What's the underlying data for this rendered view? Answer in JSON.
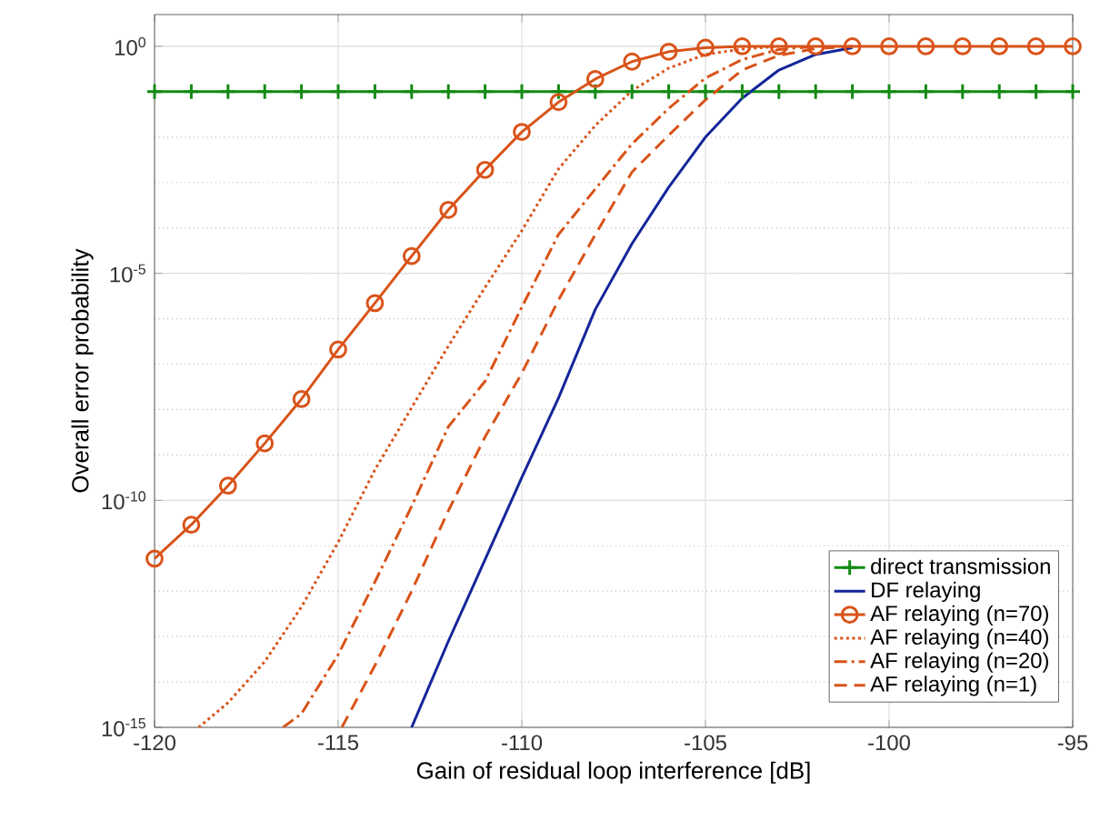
{
  "chart_data": {
    "type": "line",
    "xlabel": "Gain of residual loop interference [dB]",
    "ylabel": "Overall error probability",
    "xlim": [
      -120,
      -95
    ],
    "xticks": [
      -120,
      -115,
      -110,
      -105,
      -100,
      -95
    ],
    "ylim": [
      1e-15,
      5
    ],
    "yticks": [
      {
        "value": 1e-15,
        "label": "10$^{-15}$"
      },
      {
        "value": 1e-10,
        "label": "10$^{-10}$"
      },
      {
        "value": 1e-05,
        "label": "10$^{-5}$"
      },
      {
        "value": 1,
        "label": "10$^{0}$"
      }
    ],
    "log": "y",
    "grid": true,
    "legend": "bottom right",
    "series": [
      {
        "name": "direct transmission",
        "color": "#138a13",
        "marker": "cross",
        "line_style": "solid",
        "x": [
          -120,
          -119,
          -118,
          -117,
          -116,
          -115,
          -114,
          -113,
          -112,
          -111,
          -110,
          -109,
          -108,
          -107,
          -106,
          -105,
          -104,
          -103,
          -102,
          -101,
          -100,
          -99,
          -98,
          -97,
          -96,
          -95
        ],
        "values": [
          0.1,
          0.1,
          0.1,
          0.1,
          0.1,
          0.1,
          0.1,
          0.1,
          0.1,
          0.1,
          0.1,
          0.1,
          0.1,
          0.1,
          0.1,
          0.1,
          0.1,
          0.1,
          0.1,
          0.1,
          0.1,
          0.1,
          0.1,
          0.1,
          0.1,
          0.1
        ]
      },
      {
        "name": "DF relaying",
        "color": "#14269a",
        "marker": "none",
        "line_style": "solid",
        "x": [
          -113,
          -112,
          -111,
          -110,
          -109,
          -108,
          -107,
          -106,
          -105,
          -104,
          -103,
          -102,
          -101
        ],
        "values": [
          1e-15,
          7.9e-14,
          5e-12,
          3.2e-10,
          1.8e-08,
          1.6e-06,
          4.5e-05,
          0.00079,
          0.01,
          0.072,
          0.3,
          0.66,
          0.93
        ]
      },
      {
        "name": "AF relaying (n=70)",
        "color": "#d95319",
        "marker": "circle",
        "line_style": "solid",
        "x": [
          -120,
          -119,
          -118,
          -117,
          -116,
          -115,
          -114,
          -113,
          -112,
          -111,
          -110,
          -109,
          -108,
          -107,
          -106,
          -105,
          -104,
          -103,
          -102,
          -101,
          -100,
          -99,
          -98,
          -97,
          -96,
          -95
        ],
        "values": [
          5.2e-12,
          2.9e-11,
          2.1e-10,
          1.8e-09,
          1.7e-08,
          2.1e-07,
          2.2e-06,
          2.4e-05,
          0.00025,
          0.0019,
          0.013,
          0.059,
          0.19,
          0.46,
          0.76,
          0.93,
          1,
          1,
          1,
          1,
          1,
          1,
          1,
          1,
          1,
          1
        ]
      },
      {
        "name": "AF relaying (n=40)",
        "color": "#d95319",
        "marker": "none",
        "line_style": "dotted",
        "x": [
          -118.8,
          -118,
          -117,
          -116,
          -115,
          -114,
          -113,
          -112,
          -111,
          -110,
          -109,
          -108,
          -107,
          -106,
          -105,
          -104,
          -103
        ],
        "values": [
          1e-15,
          3.5e-15,
          2.8e-14,
          4.5e-13,
          1.2e-11,
          4.7e-10,
          1.1e-08,
          2.5e-07,
          4.9e-06,
          8.7e-05,
          0.002,
          0.018,
          0.105,
          0.33,
          0.66,
          0.87,
          1
        ]
      },
      {
        "name": "AF relaying (n=20)",
        "color": "#d95319",
        "marker": "none",
        "line_style": "dashdot",
        "x": [
          -116.5,
          -116,
          -115,
          -114,
          -113,
          -112,
          -111,
          -110,
          -109,
          -108,
          -107,
          -106,
          -105,
          -104,
          -103,
          -102
        ],
        "values": [
          1e-15,
          2e-15,
          4e-14,
          1.6e-12,
          7.4e-11,
          4.2e-09,
          4.2e-08,
          1.8e-06,
          7.2e-05,
          0.00072,
          0.0071,
          0.043,
          0.2,
          0.51,
          0.85,
          1
        ]
      },
      {
        "name": "AF relaying (n=1)",
        "color": "#d95319",
        "marker": "none",
        "line_style": "dashed",
        "x": [
          -114.9,
          -114,
          -113,
          -112,
          -111,
          -110,
          -109,
          -108,
          -107,
          -106,
          -105,
          -104,
          -103,
          -102,
          -101
        ],
        "values": [
          1e-15,
          2.3e-14,
          1e-12,
          5.9e-11,
          2.5e-09,
          6.3e-08,
          2.6e-06,
          7.1e-05,
          0.0017,
          0.011,
          0.066,
          0.3,
          0.63,
          0.89,
          1
        ]
      }
    ]
  }
}
